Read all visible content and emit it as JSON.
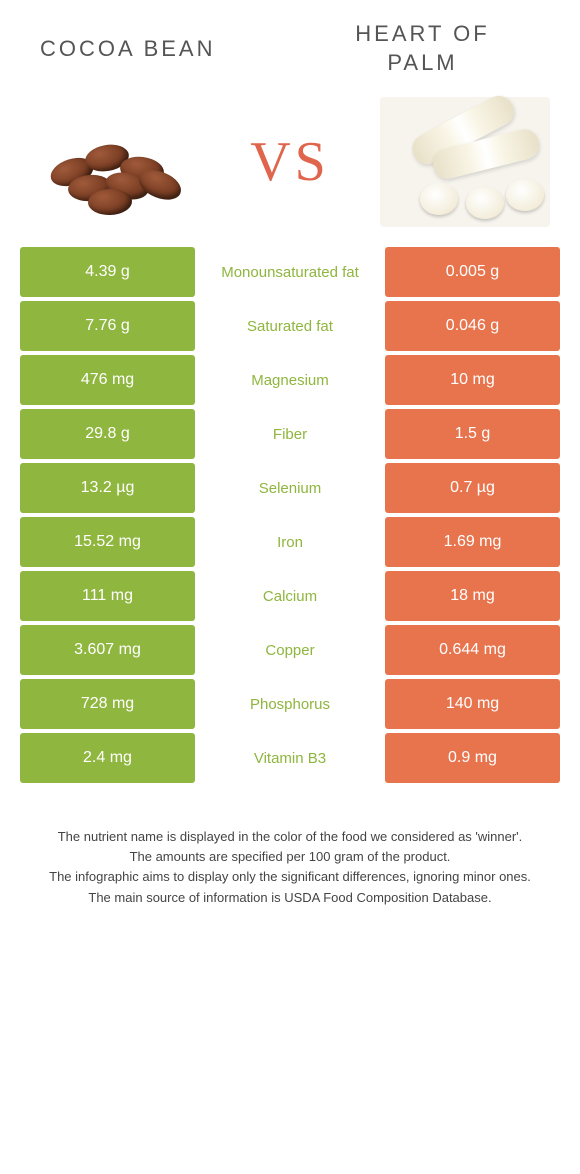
{
  "colors": {
    "left": "#8fb63e",
    "right": "#e8744e",
    "nutrient_text": "#8fb63e",
    "vs": "#e0654d",
    "title": "#555555",
    "footer": "#444444"
  },
  "foods": {
    "left": {
      "name": "COCOA BEAN"
    },
    "right": {
      "name": "HEART OF PALM"
    }
  },
  "vs_label": "VS",
  "rows": [
    {
      "left": "4.39 g",
      "nutrient": "Monounsaturated fat",
      "right": "0.005 g",
      "winner": "left"
    },
    {
      "left": "7.76 g",
      "nutrient": "Saturated fat",
      "right": "0.046 g",
      "winner": "left"
    },
    {
      "left": "476 mg",
      "nutrient": "Magnesium",
      "right": "10 mg",
      "winner": "left"
    },
    {
      "left": "29.8 g",
      "nutrient": "Fiber",
      "right": "1.5 g",
      "winner": "left"
    },
    {
      "left": "13.2 µg",
      "nutrient": "Selenium",
      "right": "0.7 µg",
      "winner": "left"
    },
    {
      "left": "15.52 mg",
      "nutrient": "Iron",
      "right": "1.69 mg",
      "winner": "left"
    },
    {
      "left": "111 mg",
      "nutrient": "Calcium",
      "right": "18 mg",
      "winner": "left"
    },
    {
      "left": "3.607 mg",
      "nutrient": "Copper",
      "right": "0.644 mg",
      "winner": "left"
    },
    {
      "left": "728 mg",
      "nutrient": "Phosphorus",
      "right": "140 mg",
      "winner": "left"
    },
    {
      "left": "2.4 mg",
      "nutrient": "Vitamin B3",
      "right": "0.9 mg",
      "winner": "left"
    }
  ],
  "footer_lines": [
    "The nutrient name is displayed in the color of the food we considered as 'winner'.",
    "The amounts are specified per 100 gram of the product.",
    "The infographic aims to display only the significant differences, ignoring minor ones.",
    "The main source of information is USDA Food Composition Database."
  ]
}
